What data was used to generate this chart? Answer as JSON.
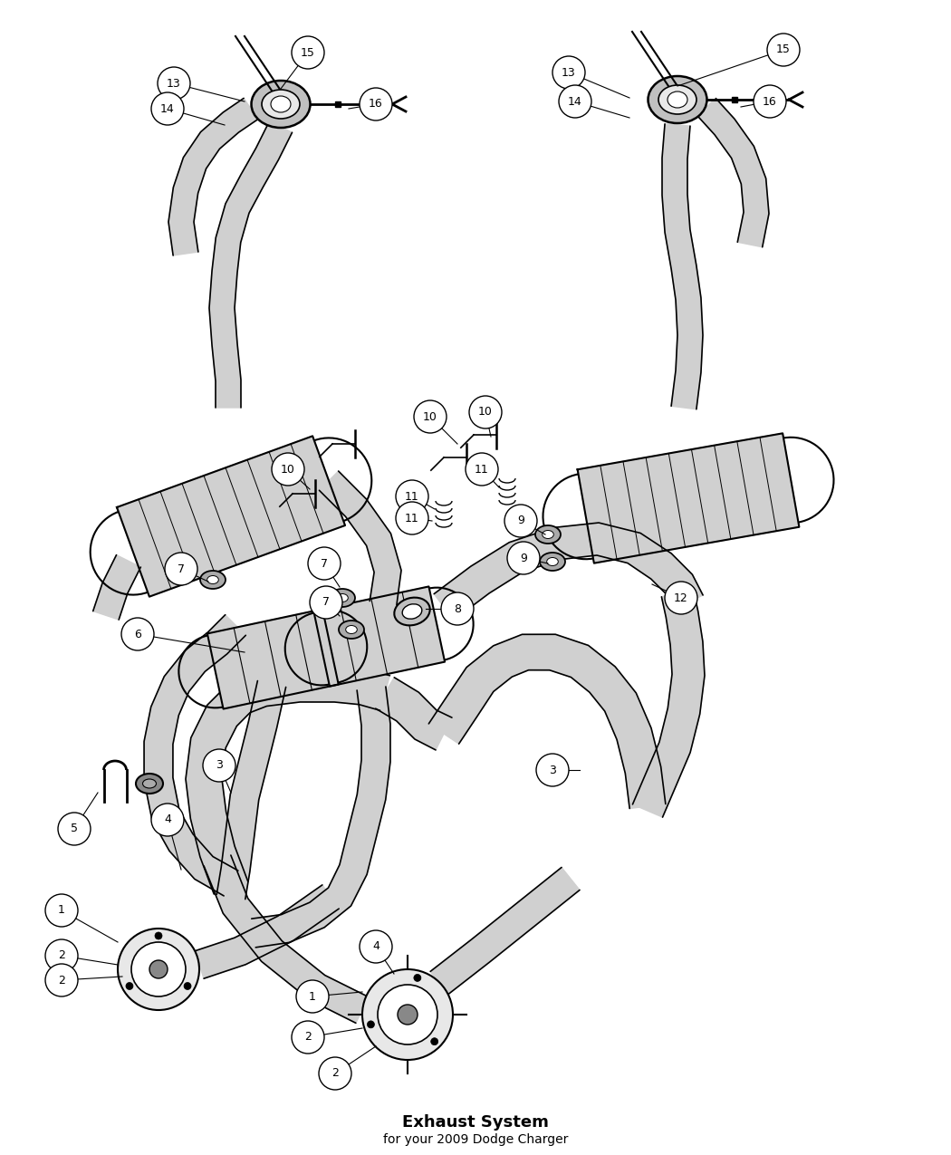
{
  "title": "Exhaust System",
  "subtitle": "for your 2009 Dodge Charger",
  "bg_color": "#ffffff",
  "lc": "#000000",
  "pipe_fill": "#d0d0d0",
  "pipe_lw": 1.2,
  "label_fs": 9,
  "label_r": 0.018,
  "leader_lw": 0.8
}
